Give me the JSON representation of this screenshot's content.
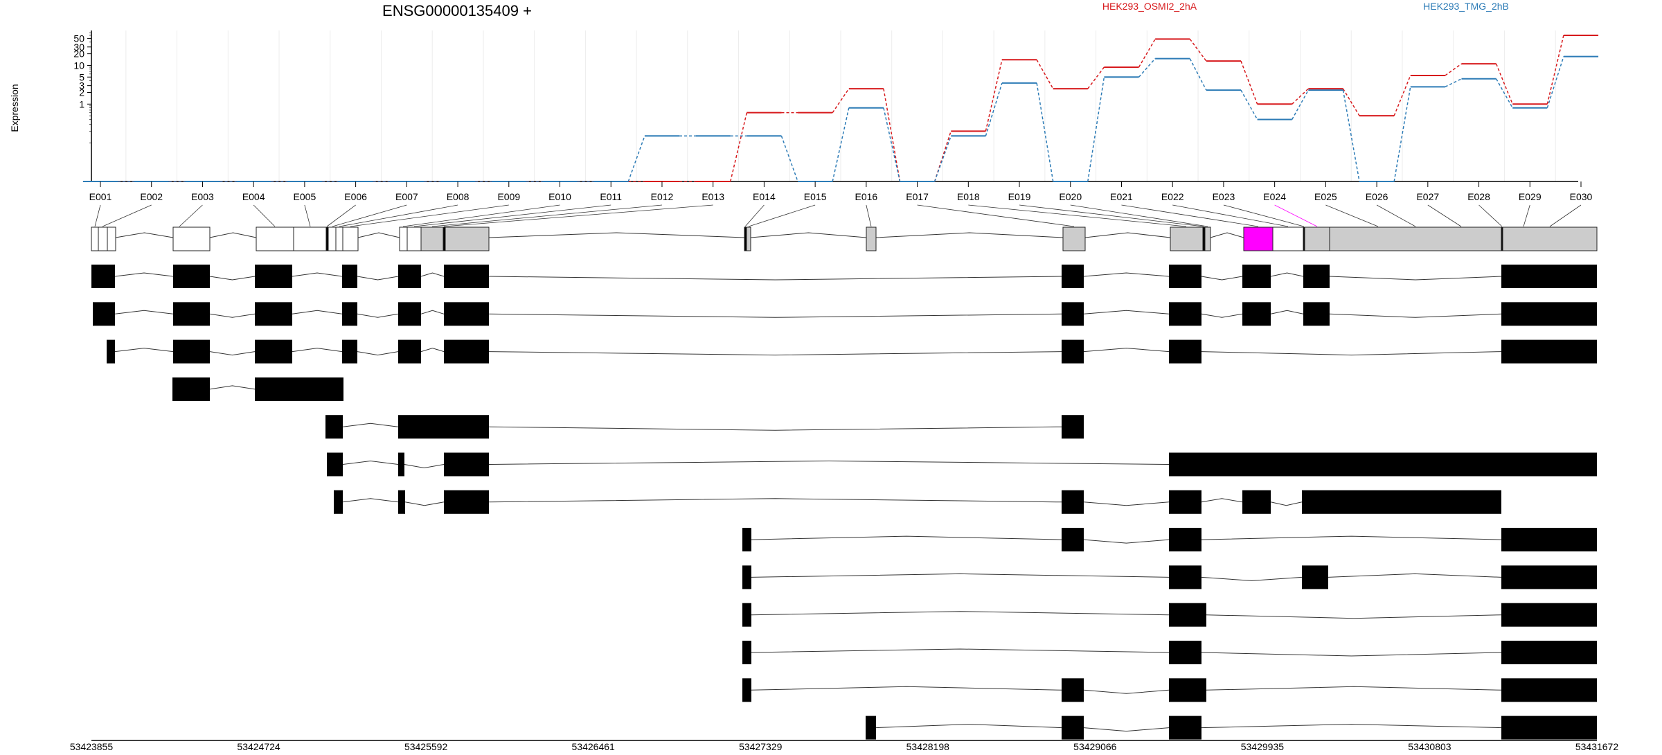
{
  "title": "ENSG00000135409 +",
  "ylabel": "Expression",
  "colors": {
    "series_a": "#d7191c",
    "series_b": "#2c7bb6",
    "exon_gray": "#cccccc",
    "highlight": "#ff00ff",
    "exon_black": "#000000"
  },
  "chart_data": {
    "type": "line",
    "title": "ENSG00000135409 +",
    "ylabel": "Expression",
    "yscale": "log",
    "y_ticks": [
      1,
      2,
      3,
      5,
      10,
      20,
      30,
      50
    ],
    "ylim": [
      0.01,
      80
    ],
    "categories": [
      "E001",
      "E002",
      "E003",
      "E004",
      "E005",
      "E006",
      "E007",
      "E008",
      "E009",
      "E010",
      "E011",
      "E012",
      "E013",
      "E014",
      "E015",
      "E016",
      "E017",
      "E018",
      "E019",
      "E020",
      "E021",
      "E022",
      "E023",
      "E024",
      "E025",
      "E026",
      "E027",
      "E028",
      "E029",
      "E030"
    ],
    "series": [
      {
        "name": "HEK293_OSMI2_2hA",
        "color": "#d7191c",
        "values": [
          0.01,
          0.01,
          0.01,
          0.01,
          0.01,
          0.01,
          0.01,
          0.01,
          0.01,
          0.01,
          0.01,
          0.01,
          0.01,
          0.6,
          0.6,
          2.5,
          0.01,
          0.2,
          14,
          2.5,
          9,
          48,
          13,
          1,
          2.5,
          0.5,
          5.5,
          11,
          1,
          60
        ]
      },
      {
        "name": "HEK293_TMG_2hB",
        "color": "#2c7bb6",
        "values": [
          0.01,
          0.01,
          0.01,
          0.01,
          0.01,
          0.01,
          0.01,
          0.01,
          0.01,
          0.01,
          0.01,
          0.15,
          0.15,
          0.15,
          0.01,
          0.8,
          0.01,
          0.15,
          3.5,
          0.01,
          5,
          15,
          2.3,
          0.4,
          2.3,
          0.01,
          2.8,
          4.5,
          0.8,
          17
        ]
      }
    ]
  },
  "gene_model": {
    "highlight_exon": "E024",
    "genomic_ticks": [
      "53423855",
      "53424724",
      "53425592",
      "53426461",
      "53427329",
      "53428198",
      "53429066",
      "53429935",
      "53430803",
      "53431672"
    ]
  }
}
